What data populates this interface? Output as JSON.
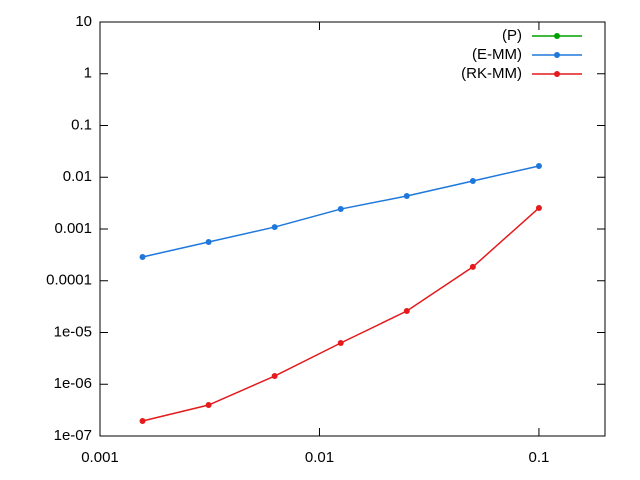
{
  "chart_data": {
    "type": "line",
    "x": [
      0.0015625,
      0.003125,
      0.00625,
      0.0125,
      0.025,
      0.05,
      0.1
    ],
    "series": [
      {
        "name": "(P)",
        "color": "#00a000",
        "values": [
          null,
          null,
          null,
          null,
          null,
          null,
          null
        ]
      },
      {
        "name": "(E-MM)",
        "color": "#1e78dc",
        "values": [
          0.000288,
          0.00056,
          0.00109,
          0.00243,
          0.00434,
          0.00847,
          0.0165
        ]
      },
      {
        "name": "(RK-MM)",
        "color": "#e41a1c",
        "values": [
          1.95e-07,
          3.97e-07,
          1.44e-06,
          6.27e-06,
          2.6e-05,
          0.000185,
          0.00255
        ]
      }
    ],
    "xscale": "log",
    "yscale": "log",
    "xlim": [
      0.001,
      0.2
    ],
    "ylim": [
      1e-07,
      10
    ],
    "xticks": [
      0.001,
      0.01,
      0.1
    ],
    "yticks": [
      10,
      1,
      0.1,
      0.01,
      0.001,
      0.0001,
      {
        "value": 1e-05,
        "label": "1e-05"
      },
      {
        "value": 1e-06,
        "label": "1e-06"
      },
      {
        "value": 1e-07,
        "label": "1e-07"
      }
    ],
    "legend": "top-right"
  }
}
